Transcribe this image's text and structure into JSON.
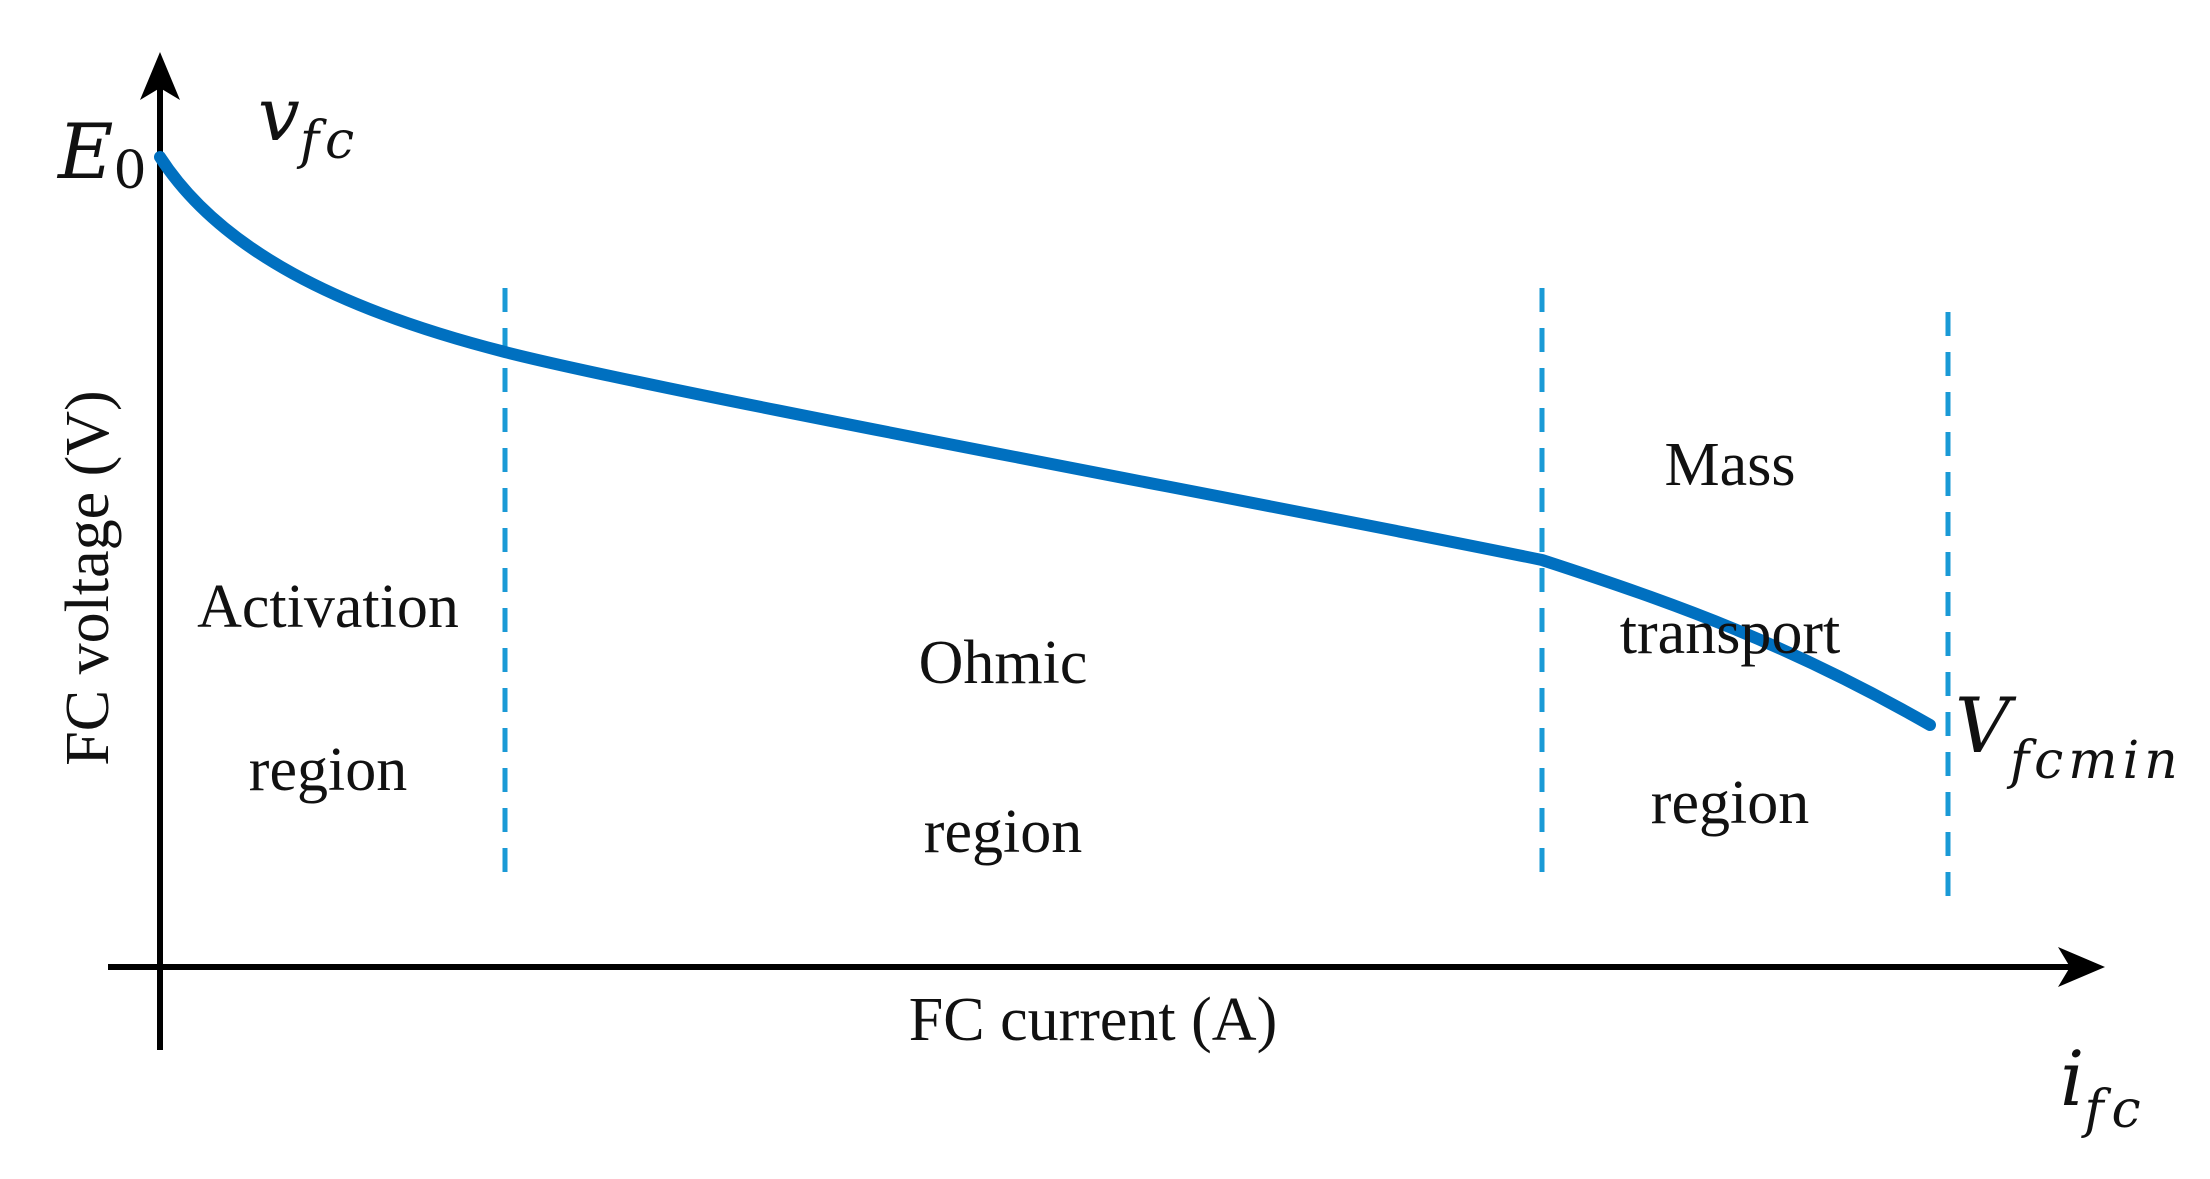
{
  "symbols": {
    "e0_main": "E",
    "e0_sub": "0",
    "v_main": "v",
    "v_sub": "fc",
    "vmin_main": "V",
    "vmin_sub": "fcmin",
    "i_main": "i",
    "i_sub": "fc"
  },
  "axes": {
    "x_label": "FC current (A)",
    "y_label": "FC voltage (V)"
  },
  "regions": {
    "activation": [
      "Activation",
      "region"
    ],
    "ohmic": [
      "Ohmic",
      "region"
    ],
    "mass_transport": [
      "Mass",
      "transport",
      "region"
    ]
  },
  "colors": {
    "curve": "#0070C0",
    "boundary": "#1A9AD6",
    "axis": "#000000"
  }
}
